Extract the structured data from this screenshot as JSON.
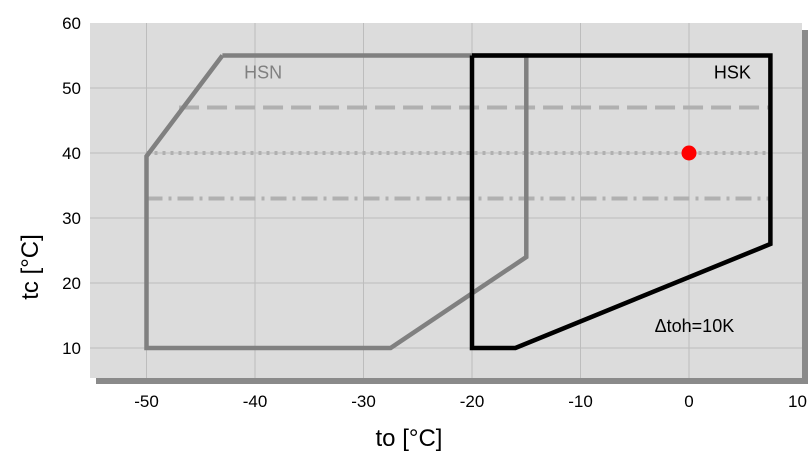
{
  "chart_data": {
    "type": "line",
    "xlabel": "to [°C]",
    "ylabel": "tc [°C]",
    "xlim": [
      -55,
      10
    ],
    "ylim": [
      5,
      60
    ],
    "xticks": [
      -50,
      -40,
      -30,
      -20,
      -10,
      0,
      10
    ],
    "yticks": [
      10,
      20,
      30,
      40,
      50,
      60
    ],
    "grid": true,
    "colors": {
      "plot_bg": "#dcdcdc",
      "shadow": "#8a8a8a",
      "hsn": "#808080",
      "hsk": "#000000",
      "ref_lines": "#b0b0b0",
      "point": "#ff0000",
      "grid": "#bdbdbd"
    },
    "series": [
      {
        "name": "HSN",
        "points": [
          [
            -43,
            55
          ],
          [
            -15,
            55
          ],
          [
            -15,
            24
          ],
          [
            -27.5,
            10
          ],
          [
            -50,
            10
          ],
          [
            -50,
            39.5
          ],
          [
            -43,
            55
          ]
        ]
      },
      {
        "name": "HSK",
        "points": [
          [
            -20,
            55
          ],
          [
            7.5,
            55
          ],
          [
            7.5,
            26
          ],
          [
            -16,
            10
          ],
          [
            -20,
            10
          ],
          [
            -20,
            55
          ]
        ]
      }
    ],
    "reference_lines": [
      {
        "y": 47,
        "x": [
          -47,
          7.5
        ],
        "style": "dashed"
      },
      {
        "y": 40,
        "x": [
          -50,
          7.5
        ],
        "style": "dotted"
      },
      {
        "y": 33,
        "x": [
          -50,
          7.5
        ],
        "style": "dashdot"
      }
    ],
    "marker": {
      "x": 0,
      "y": 40
    },
    "annotations": [
      {
        "text": "HSN",
        "x": -41,
        "y": 51.5,
        "color": "#808080"
      },
      {
        "text": "HSK",
        "x": 4,
        "y": 51.5,
        "color": "#000000"
      },
      {
        "text": "Δtoh=10K",
        "x": 0.5,
        "y": 12.5,
        "color": "#000000"
      }
    ]
  }
}
